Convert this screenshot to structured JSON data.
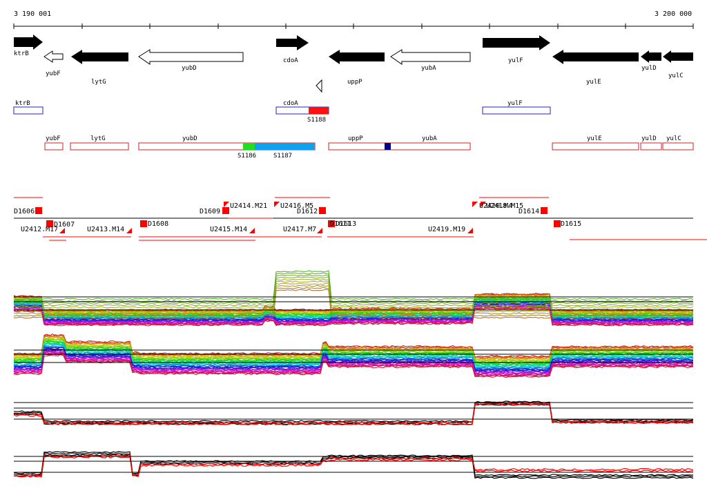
{
  "ruler": {
    "start_label": "3 190 001",
    "end_label": "3 200 000"
  },
  "genes_top": [
    {
      "name": "ktrB",
      "filled": true,
      "dir": "right"
    },
    {
      "name": "yubF",
      "filled": false,
      "dir": "left"
    },
    {
      "name": "lytG",
      "filled": true,
      "dir": "left"
    },
    {
      "name": "yubD",
      "filled": false,
      "dir": "left"
    },
    {
      "name": "cdoA",
      "filled": true,
      "dir": "right"
    },
    {
      "name": "uppP",
      "filled": true,
      "dir": "left"
    },
    {
      "name": "yubA",
      "filled": false,
      "dir": "left"
    },
    {
      "name": "yulF",
      "filled": true,
      "dir": "right"
    },
    {
      "name": "yulE",
      "filled": true,
      "dir": "left"
    },
    {
      "name": "yulD",
      "filled": true,
      "dir": "left"
    },
    {
      "name": "yulC",
      "filled": true,
      "dir": "left"
    }
  ],
  "plus_boxes": [
    {
      "name": "ktrB"
    },
    {
      "name": "cdoA",
      "feature": "S1188"
    },
    {
      "name": "yulF"
    }
  ],
  "minus_boxes": [
    {
      "name": "yubF"
    },
    {
      "name": "lytG"
    },
    {
      "name": "yubD",
      "features": [
        "S1186",
        "S1187"
      ]
    },
    {
      "name": "uppP"
    },
    {
      "name": "yubA"
    },
    {
      "name": "yulE"
    },
    {
      "name": "yulD"
    },
    {
      "name": "yulC"
    }
  ],
  "features": {
    "s1186": "S1186",
    "s1187": "S1187",
    "s1188": "S1188"
  },
  "tus_upper": [
    "D1606",
    "U2414.M21",
    "D1609",
    "U2416.M5",
    "D1612",
    "U2420.M4",
    "U2418.M15",
    "D1614"
  ],
  "tus_lower": [
    "U2412.M17",
    "D1607",
    "U2413.M14",
    "D1608",
    "U2415.M14",
    "U2417.M7",
    "D1611",
    "D1613",
    "U2419.M19",
    "D1615"
  ],
  "colors": {
    "arrow_fill": "#000000",
    "box_plus": "#2222bb",
    "box_minus": "#cc2222",
    "s1186": "#22dd22",
    "s1187": "#11a0ee",
    "s1188": "#ff1111",
    "tus": "#ff0000",
    "dark_blue": "#000088"
  }
}
